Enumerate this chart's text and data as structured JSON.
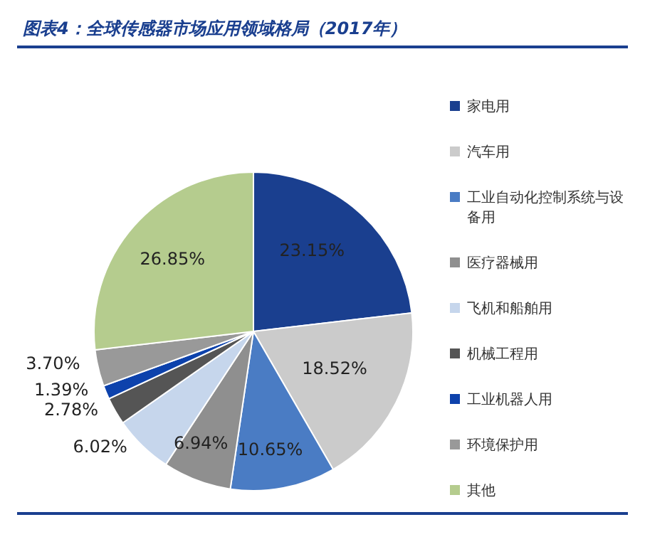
{
  "chart_data": {
    "type": "pie",
    "title": "图表4：全球传感器市场应用领域格局（2017年）",
    "categories": [
      "家电用",
      "汽车用",
      "工业自动化控制系统与设备用",
      "医疗器械用",
      "飞机和船舶用",
      "机械工程用",
      "工业机器人用",
      "环境保护用",
      "其他"
    ],
    "values": [
      23.15,
      18.52,
      10.65,
      6.94,
      6.02,
      2.78,
      1.39,
      3.7,
      26.85
    ],
    "value_labels": [
      "23.15%",
      "18.52%",
      "10.65%",
      "6.94%",
      "6.02%",
      "2.78%",
      "1.39%",
      "3.70%",
      "26.85%"
    ],
    "colors": [
      "#1a3f8f",
      "#cbcbcb",
      "#4a7cc4",
      "#8f8f8f",
      "#c6d6ec",
      "#555555",
      "#0d42ac",
      "#999999",
      "#b5cc8e"
    ],
    "legend": "right"
  }
}
